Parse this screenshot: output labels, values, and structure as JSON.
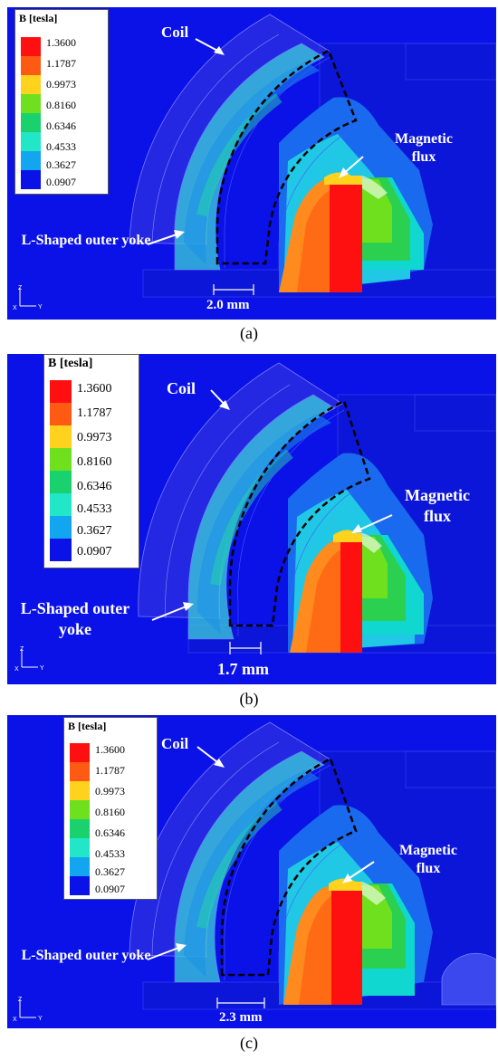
{
  "panels": [
    {
      "caption": "(a)",
      "legend_title": "B [tesla]",
      "legend_values": [
        "1.3600",
        "1.1787",
        "0.9973",
        "0.8160",
        "0.6346",
        "0.4533",
        "0.3627",
        "0.0907"
      ],
      "coil_label": "Coil",
      "flux_label": "Magnetic flux",
      "yoke_label": "L-Shaped outer yoke",
      "dimension": "2.0 mm",
      "axis_z": "Z",
      "axis_x": "X",
      "axis_y": "Y"
    },
    {
      "caption": "(b)",
      "legend_title": "B [tesla]",
      "legend_values": [
        "1.3600",
        "1.1787",
        "0.9973",
        "0.8160",
        "0.6346",
        "0.4533",
        "0.3627",
        "0.0907"
      ],
      "coil_label": "Coil",
      "flux_label": "Magnetic flux",
      "yoke_label": "L-Shaped outer yoke",
      "dimension": "1.7 mm",
      "axis_z": "Z",
      "axis_x": "X",
      "axis_y": "Y"
    },
    {
      "caption": "(c)",
      "legend_title": "B [tesla]",
      "legend_values": [
        "1.3600",
        "1.1787",
        "0.9973",
        "0.8160",
        "0.6346",
        "0.4533",
        "0.3627",
        "0.0907"
      ],
      "coil_label": "Coil",
      "flux_label": "Magnetic flux",
      "yoke_label": "L-Shaped outer yoke",
      "dimension": "2.3 mm",
      "axis_z": "Z",
      "axis_x": "X",
      "axis_y": "Y"
    }
  ],
  "colors": {
    "background": "#0a12e8",
    "legend_scale": [
      "#ff1010",
      "#ff5a14",
      "#ffd21e",
      "#6fe01e",
      "#19d26e",
      "#22e6c8",
      "#12a6f0",
      "#0a12e8"
    ]
  }
}
